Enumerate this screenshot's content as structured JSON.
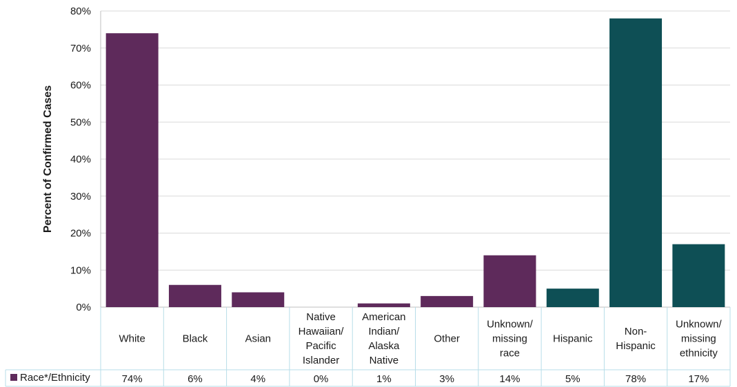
{
  "chart_data": {
    "type": "bar",
    "ylabel": "Percent of Confirmed Cases",
    "ylim": [
      0,
      80
    ],
    "yticks": [
      "0%",
      "10%",
      "20%",
      "30%",
      "40%",
      "50%",
      "60%",
      "70%",
      "80%"
    ],
    "ytick_values": [
      0,
      10,
      20,
      30,
      40,
      50,
      60,
      70,
      80
    ],
    "grid": true,
    "legend_position": "bottom-left (data table)",
    "categories": [
      [
        "White"
      ],
      [
        "Black"
      ],
      [
        "Asian"
      ],
      [
        "Native",
        "Hawaiian/",
        "Pacific",
        "Islander"
      ],
      [
        "American",
        "Indian/",
        "Alaska",
        "Native"
      ],
      [
        "Other"
      ],
      [
        "Unknown/",
        "missing",
        "race"
      ],
      [
        "Hispanic"
      ],
      [
        "Non-",
        "Hispanic"
      ],
      [
        "Unknown/",
        "missing",
        "ethnicity"
      ]
    ],
    "series": [
      {
        "name": "Race*/Ethnicity",
        "values": [
          74,
          6,
          4,
          0,
          1,
          3,
          14,
          5,
          78,
          17
        ],
        "value_labels": [
          "74%",
          "6%",
          "4%",
          "0%",
          "1%",
          "3%",
          "14%",
          "5%",
          "78%",
          "17%"
        ]
      }
    ],
    "colors": {
      "race": "#5e2a5b",
      "ethnicity": "#0e4f55",
      "grid": "#d9d9d9",
      "table_border": "#b7dde8"
    },
    "group_of_bar": [
      "race",
      "race",
      "race",
      "race",
      "race",
      "race",
      "race",
      "ethnicity",
      "ethnicity",
      "ethnicity"
    ]
  }
}
